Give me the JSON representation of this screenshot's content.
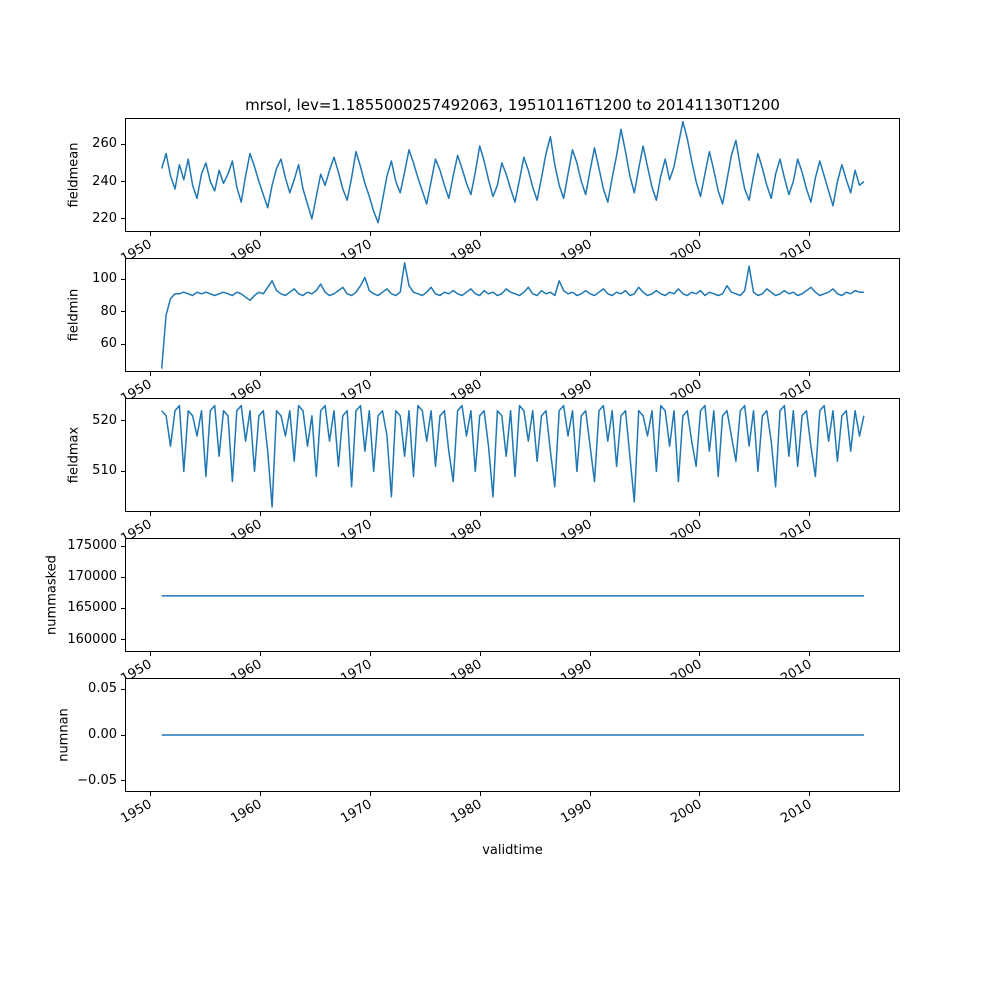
{
  "chart_data": {
    "type": "line",
    "title": "mrsol, lev=1.1855000257492063, 19510116T1200 to 20141130T1200",
    "xlabel": "validtime",
    "line_color": "#1f77b4",
    "legend": "none",
    "grid": false,
    "xlim": [
      1947.7,
      2018.2
    ],
    "x_start": 1951.04,
    "x_end": 2014.92,
    "x_ticks": [
      1950,
      1960,
      1970,
      1980,
      1990,
      2000,
      2010
    ],
    "x_tick_labels": [
      "1950",
      "1960",
      "1970",
      "1980",
      "1990",
      "2000",
      "2010"
    ],
    "subplots": [
      {
        "ylabel": "fieldmean",
        "ylim": [
          213,
          274
        ],
        "yticks": [
          220,
          240,
          260
        ],
        "ytick_labels": [
          "220",
          "240",
          "260"
        ],
        "values": [
          247,
          255,
          243,
          236,
          249,
          241,
          252,
          238,
          231,
          244,
          250,
          240,
          235,
          246,
          239,
          244,
          251,
          237,
          229,
          243,
          255,
          248,
          240,
          233,
          226,
          238,
          247,
          252,
          242,
          234,
          241,
          249,
          236,
          228,
          220,
          232,
          244,
          238,
          246,
          253,
          245,
          236,
          230,
          242,
          256,
          248,
          239,
          232,
          224,
          218,
          230,
          243,
          251,
          240,
          234,
          245,
          257,
          250,
          242,
          235,
          228,
          240,
          252,
          246,
          238,
          231,
          243,
          254,
          247,
          239,
          233,
          245,
          259,
          251,
          241,
          232,
          238,
          250,
          244,
          236,
          229,
          241,
          253,
          246,
          237,
          230,
          242,
          255,
          264,
          249,
          238,
          231,
          244,
          257,
          250,
          240,
          233,
          246,
          258,
          247,
          236,
          229,
          242,
          254,
          268,
          256,
          243,
          234,
          247,
          259,
          248,
          237,
          230,
          243,
          252,
          241,
          248,
          260,
          272,
          263,
          251,
          240,
          232,
          244,
          256,
          246,
          235,
          228,
          241,
          254,
          262,
          248,
          236,
          230,
          243,
          255,
          247,
          238,
          231,
          244,
          252,
          242,
          233,
          240,
          252,
          245,
          236,
          229,
          242,
          251,
          243,
          235,
          227,
          240,
          249,
          241,
          234,
          246,
          238,
          240
        ]
      },
      {
        "ylabel": "fieldmin",
        "ylim": [
          43,
          113
        ],
        "yticks": [
          60,
          80,
          100
        ],
        "ytick_labels": [
          "60",
          "80",
          "100"
        ],
        "values": [
          45,
          78,
          88,
          91,
          91,
          92,
          91,
          90,
          92,
          91,
          92,
          91,
          90,
          91,
          92,
          91,
          90,
          92,
          91,
          89,
          87,
          90,
          92,
          91,
          95,
          99,
          93,
          91,
          90,
          92,
          94,
          91,
          90,
          92,
          91,
          93,
          97,
          92,
          90,
          91,
          93,
          95,
          91,
          90,
          92,
          96,
          101,
          93,
          91,
          90,
          92,
          94,
          91,
          90,
          92,
          110,
          96,
          92,
          91,
          90,
          92,
          95,
          91,
          90,
          92,
          91,
          93,
          91,
          90,
          92,
          94,
          91,
          90,
          93,
          91,
          92,
          90,
          91,
          94,
          92,
          91,
          90,
          92,
          95,
          91,
          90,
          93,
          91,
          92,
          90,
          99,
          93,
          91,
          92,
          90,
          91,
          93,
          91,
          90,
          92,
          94,
          91,
          90,
          92,
          91,
          93,
          90,
          91,
          95,
          92,
          90,
          91,
          93,
          91,
          90,
          92,
          91,
          94,
          91,
          90,
          92,
          91,
          93,
          90,
          92,
          91,
          90,
          91,
          96,
          92,
          91,
          90,
          93,
          108,
          92,
          90,
          91,
          94,
          92,
          90,
          91,
          93,
          91,
          92,
          90,
          91,
          93,
          95,
          92,
          90,
          91,
          92,
          94,
          91,
          90,
          92,
          91,
          93,
          92,
          92
        ]
      },
      {
        "ylabel": "fieldmax",
        "ylim": [
          502,
          524.5
        ],
        "yticks": [
          510,
          520
        ],
        "ytick_labels": [
          "510",
          "520"
        ],
        "values": [
          522,
          521,
          515,
          522,
          523,
          510,
          522,
          521,
          517,
          522,
          509,
          522,
          523,
          513,
          522,
          521,
          508,
          522,
          523,
          516,
          522,
          510,
          521,
          522,
          514,
          503,
          522,
          521,
          517,
          522,
          512,
          523,
          522,
          515,
          521,
          509,
          522,
          523,
          516,
          522,
          511,
          521,
          522,
          507,
          522,
          523,
          514,
          522,
          510,
          521,
          522,
          517,
          505,
          522,
          521,
          513,
          522,
          509,
          523,
          522,
          516,
          522,
          511,
          521,
          522,
          514,
          508,
          522,
          523,
          517,
          522,
          510,
          521,
          522,
          515,
          505,
          522,
          521,
          513,
          522,
          509,
          523,
          522,
          516,
          522,
          512,
          521,
          522,
          514,
          507,
          522,
          523,
          517,
          522,
          510,
          521,
          522,
          515,
          508,
          522,
          523,
          516,
          522,
          511,
          521,
          522,
          513,
          504,
          522,
          521,
          517,
          522,
          510,
          523,
          522,
          515,
          522,
          508,
          521,
          522,
          516,
          511,
          522,
          523,
          514,
          522,
          509,
          521,
          522,
          517,
          512,
          522,
          523,
          515,
          522,
          510,
          521,
          522,
          516,
          507,
          522,
          523,
          513,
          522,
          511,
          521,
          522,
          515,
          509,
          522,
          523,
          516,
          522,
          512,
          521,
          522,
          514,
          522,
          517,
          521
        ]
      },
      {
        "ylabel": "nummasked",
        "ylim": [
          158000,
          176300
        ],
        "yticks": [
          160000,
          165000,
          170000,
          175000
        ],
        "ytick_labels": [
          "160000",
          "165000",
          "170000",
          "175000"
        ],
        "values": [
          167000,
          167000
        ]
      },
      {
        "ylabel": "numnan",
        "ylim": [
          -0.062,
          0.062
        ],
        "yticks": [
          -0.05,
          0,
          0.05
        ],
        "ytick_labels": [
          "−0.05",
          "0.00",
          "0.05"
        ],
        "values": [
          0,
          0
        ]
      }
    ]
  }
}
